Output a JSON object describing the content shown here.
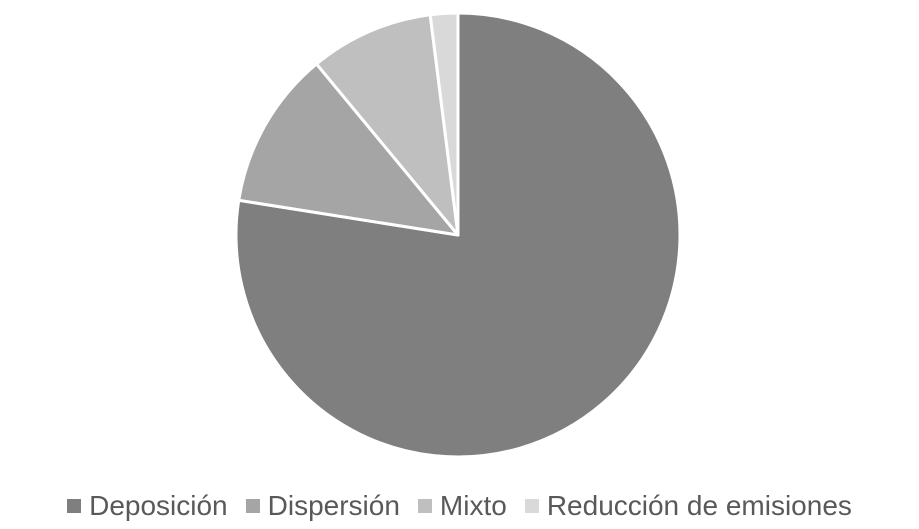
{
  "chart_data": {
    "type": "pie",
    "categories": [
      "Deposición",
      "Dispersión",
      "Mixto",
      "Reducción de emisiones"
    ],
    "values": [
      77.5,
      11.5,
      9.0,
      2.0
    ],
    "colors": [
      "#7f7f7f",
      "#a5a5a5",
      "#bfbfbf",
      "#d9d9d9"
    ],
    "start_angle_deg": 0,
    "direction": "clockwise",
    "legend_position": "bottom"
  }
}
